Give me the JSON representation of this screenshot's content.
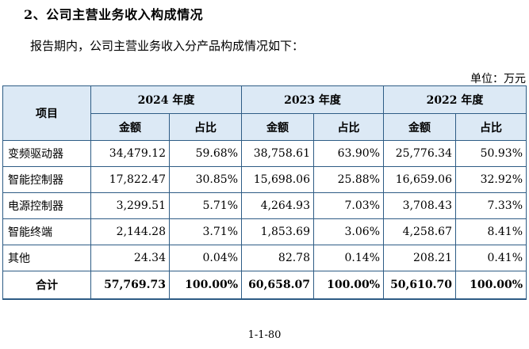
{
  "heading": "2、公司主营业务收入构成情况",
  "intro": "报告期内，公司主营业务收入分产品构成情况如下：",
  "unit_note": "单位：万元",
  "table": {
    "item_header": "项目",
    "years": [
      "2024 年度",
      "2023 年度",
      "2022 年度"
    ],
    "sub_headers": [
      "金额",
      "占比",
      "金额",
      "占比",
      "金额",
      "占比"
    ],
    "rows": [
      {
        "name": "变频驱动器",
        "values": [
          "34,479.12",
          "59.68%",
          "38,758.61",
          "63.90%",
          "25,776.34",
          "50.93%"
        ]
      },
      {
        "name": "智能控制器",
        "values": [
          "17,822.47",
          "30.85%",
          "15,698.06",
          "25.88%",
          "16,659.06",
          "32.92%"
        ]
      },
      {
        "name": "电源控制器",
        "values": [
          "3,299.51",
          "5.71%",
          "4,264.93",
          "7.03%",
          "3,708.43",
          "7.33%"
        ]
      },
      {
        "name": "智能终端",
        "values": [
          "2,144.28",
          "3.71%",
          "1,853.69",
          "3.06%",
          "4,258.67",
          "8.41%"
        ]
      },
      {
        "name": "其他",
        "values": [
          "24.34",
          "0.04%",
          "82.78",
          "0.14%",
          "208.21",
          "0.41%"
        ]
      }
    ],
    "total": {
      "name": "合计",
      "values": [
        "57,769.73",
        "100.00%",
        "60,658.07",
        "100.00%",
        "50,610.70",
        "100.00%"
      ]
    }
  },
  "page_number": "1-1-80"
}
